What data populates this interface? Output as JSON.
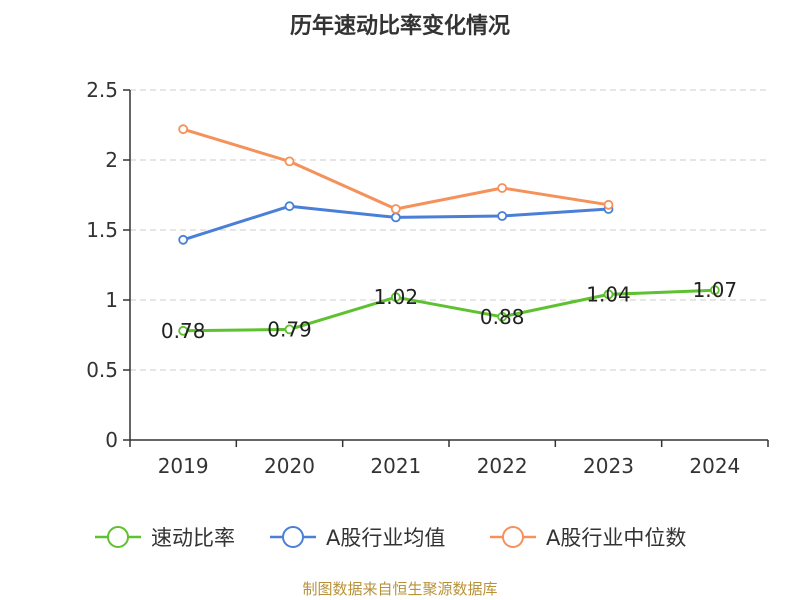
{
  "chart_data": {
    "type": "line",
    "title": "历年速动比率变化情况",
    "categories": [
      "2019",
      "2020",
      "2021",
      "2022",
      "2023",
      "2024"
    ],
    "ylim": [
      0,
      2.5
    ],
    "yticks": [
      "0",
      "0.5",
      "1",
      "1.5",
      "2",
      "2.5"
    ],
    "grid": true,
    "legend_position": "bottom",
    "series": [
      {
        "name": "速动比率",
        "color": "#5ec12f",
        "values": [
          0.78,
          0.79,
          1.02,
          0.88,
          1.04,
          1.07
        ],
        "labels": [
          "0.78",
          "0.79",
          "1.02",
          "0.88",
          "1.04",
          "1.07"
        ]
      },
      {
        "name": "A股行业均值",
        "color": "#4a7fd8",
        "values": [
          1.43,
          1.67,
          1.59,
          1.6,
          1.65,
          null
        ]
      },
      {
        "name": "A股行业中位数",
        "color": "#f5915a",
        "values": [
          2.22,
          1.99,
          1.65,
          1.8,
          1.68,
          null
        ]
      }
    ]
  },
  "source": "制图数据来自恒生聚源数据库"
}
